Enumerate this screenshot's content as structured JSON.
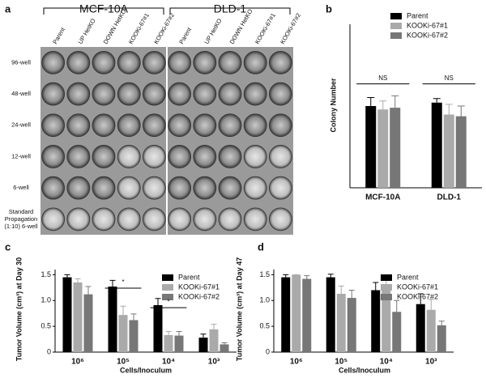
{
  "panel_a": {
    "label": "a",
    "groups": [
      "MCF-10A",
      "DLD-1"
    ],
    "columns": [
      "Parent",
      "UP HetKO",
      "DOWN HetKO",
      "KOOKi-67#1",
      "KOOKi-67#2",
      "Parent",
      "UP HetKO",
      "DOWN HetKO",
      "KOOKi-67#1",
      "KOOKi-67#2"
    ],
    "rows": [
      [
        "96-well"
      ],
      [
        "48-well"
      ],
      [
        "24-well"
      ],
      [
        "12-well"
      ],
      [
        "6-well"
      ],
      [
        "Standard",
        "Propagation",
        "(1:10) 6-well"
      ]
    ]
  },
  "chart_data": [
    {
      "type": "bar",
      "label": "b",
      "y_label": "Colony Number",
      "categories": [
        "MCF-10A",
        "DLD-1"
      ],
      "ylim": [
        0,
        48
      ],
      "series": [
        {
          "name": "Parent",
          "color": "#000000",
          "values": [
            24,
            25
          ],
          "errors": [
            2.5,
            1.2
          ]
        },
        {
          "name": "KOOKi-67#1",
          "color": "#aaaaaa",
          "values": [
            23,
            21.5
          ],
          "errors": [
            2.5,
            3
          ]
        },
        {
          "name": "KOOKi-67#2",
          "color": "#777777",
          "values": [
            23.5,
            21
          ],
          "errors": [
            3.5,
            3
          ]
        }
      ],
      "annotations": [
        "NS",
        "NS"
      ]
    },
    {
      "type": "bar",
      "label": "c",
      "y_label": "Tumor Volume (cm³) at Day 30",
      "x_label": "Cells/Inoculum",
      "categories": [
        "10⁶",
        "10⁵",
        "10⁴",
        "10³"
      ],
      "ylim": [
        0,
        1.6
      ],
      "yticks": [
        0,
        0.5,
        {
          "value": 1,
          "label": "1.0"
        },
        1.5
      ],
      "series": [
        {
          "name": "Parent",
          "color": "#000000",
          "values": [
            1.45,
            1.27,
            0.91,
            0.28
          ],
          "errors": [
            0.05,
            0.12,
            0.13,
            0.07
          ]
        },
        {
          "name": "KOOKi-67#1",
          "color": "#aaaaaa",
          "values": [
            1.35,
            0.72,
            0.33,
            0.44
          ],
          "errors": [
            0.07,
            0.17,
            0.07,
            0.1
          ]
        },
        {
          "name": "KOOKi-67#2",
          "color": "#777777",
          "values": [
            1.12,
            0.62,
            0.32,
            0.15
          ],
          "errors": [
            0.15,
            0.12,
            0.08,
            0.03
          ]
        }
      ],
      "annotations": [
        "*",
        "*"
      ]
    },
    {
      "type": "bar",
      "label": "d",
      "y_label": "Tumor Volume (cm³) at Day 47",
      "x_label": "Cells/Inoculum",
      "categories": [
        "10⁶",
        "10⁵",
        "10⁴",
        "10³"
      ],
      "ylim": [
        0,
        1.6
      ],
      "yticks": [
        0,
        0.5,
        {
          "value": 1,
          "label": "1.0"
        },
        1.5
      ],
      "series": [
        {
          "name": "Parent",
          "color": "#000000",
          "values": [
            1.45,
            1.45,
            1.2,
            0.93
          ],
          "errors": [
            0.05,
            0.06,
            0.15,
            0.2
          ]
        },
        {
          "name": "KOOKi-67#1",
          "color": "#aaaaaa",
          "values": [
            1.5,
            1.13,
            1.22,
            0.82
          ],
          "errors": [
            0,
            0.15,
            0.18,
            0.2
          ]
        },
        {
          "name": "KOOKi-67#2",
          "color": "#777777",
          "values": [
            1.42,
            1.05,
            0.78,
            0.52
          ],
          "errors": [
            0.06,
            0.15,
            0.22,
            0.08
          ]
        }
      ]
    }
  ]
}
